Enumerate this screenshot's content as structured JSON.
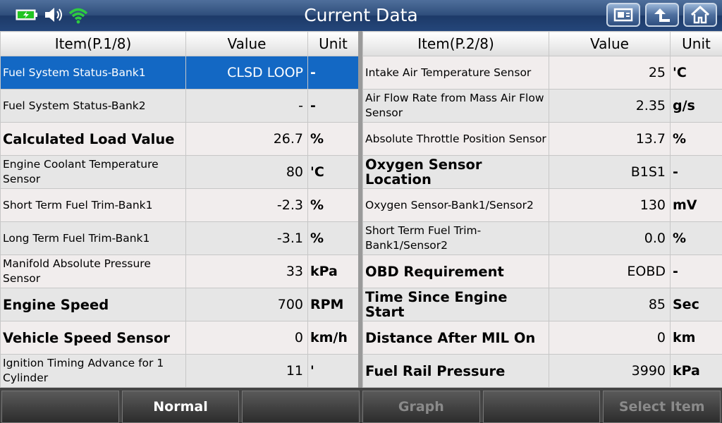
{
  "header": {
    "title": "Current Data",
    "status_icons": [
      "battery-icon",
      "speaker-icon",
      "wifi-icon"
    ],
    "buttons": [
      "camera-icon",
      "back-arrow-icon",
      "home-icon"
    ]
  },
  "left_table": {
    "headers": {
      "item": "Item(P.1/8)",
      "value": "Value",
      "unit": "Unit"
    },
    "rows": [
      {
        "item": "Fuel System Status-Bank1",
        "value": "CLSD LOOP",
        "unit": "-",
        "size": "small",
        "selected": true
      },
      {
        "item": "Fuel System Status-Bank2",
        "value": "-",
        "unit": "-",
        "size": "small"
      },
      {
        "item": "Calculated Load Value",
        "value": "26.7",
        "unit": "%",
        "size": "large"
      },
      {
        "item": "Engine Coolant Temperature Sensor",
        "value": "80",
        "unit": "'C",
        "size": "small"
      },
      {
        "item": "Short Term Fuel Trim-Bank1",
        "value": "-2.3",
        "unit": "%",
        "size": "small"
      },
      {
        "item": "Long Term Fuel Trim-Bank1",
        "value": "-3.1",
        "unit": "%",
        "size": "small"
      },
      {
        "item": "Manifold Absolute Pressure Sensor",
        "value": "33",
        "unit": "kPa",
        "size": "small"
      },
      {
        "item": "Engine Speed",
        "value": "700",
        "unit": "RPM",
        "size": "large"
      },
      {
        "item": "Vehicle Speed Sensor",
        "value": "0",
        "unit": "km/h",
        "size": "large"
      },
      {
        "item": "Ignition Timing Advance for 1 Cylinder",
        "value": "11",
        "unit": "'",
        "size": "small"
      }
    ]
  },
  "right_table": {
    "headers": {
      "item": "Item(P.2/8)",
      "value": "Value",
      "unit": "Unit"
    },
    "rows": [
      {
        "item": "Intake Air Temperature Sensor",
        "value": "25",
        "unit": "'C",
        "size": "small"
      },
      {
        "item": "Air Flow Rate from Mass Air Flow Sensor",
        "value": "2.35",
        "unit": "g/s",
        "size": "small"
      },
      {
        "item": "Absolute Throttle Position Sensor",
        "value": "13.7",
        "unit": "%",
        "size": "small"
      },
      {
        "item": "Oxygen Sensor Location",
        "value": "B1S1",
        "unit": "-",
        "size": "large"
      },
      {
        "item": "Oxygen Sensor-Bank1/Sensor2",
        "value": "130",
        "unit": "mV",
        "size": "small"
      },
      {
        "item": "Short Term Fuel Trim-Bank1/Sensor2",
        "value": "0.0",
        "unit": "%",
        "size": "small"
      },
      {
        "item": "OBD Requirement",
        "value": "EOBD",
        "unit": "-",
        "size": "large"
      },
      {
        "item": "Time Since Engine Start",
        "value": "85",
        "unit": "Sec",
        "size": "large"
      },
      {
        "item": "Distance After MIL On",
        "value": "0",
        "unit": "km",
        "size": "large"
      },
      {
        "item": "Fuel Rail Pressure",
        "value": "3990",
        "unit": "kPa",
        "size": "large"
      }
    ]
  },
  "footer": {
    "buttons": [
      {
        "label": "",
        "enabled": true
      },
      {
        "label": "Normal",
        "enabled": true
      },
      {
        "label": "",
        "enabled": true
      },
      {
        "label": "Graph",
        "enabled": false
      },
      {
        "label": "",
        "enabled": true
      },
      {
        "label": "Select Item",
        "enabled": false
      }
    ]
  },
  "colors": {
    "selected_row": "#1368c4",
    "titlebar": "#2f4e7c",
    "wifi": "#2ecc40",
    "battery": "#22c422"
  }
}
